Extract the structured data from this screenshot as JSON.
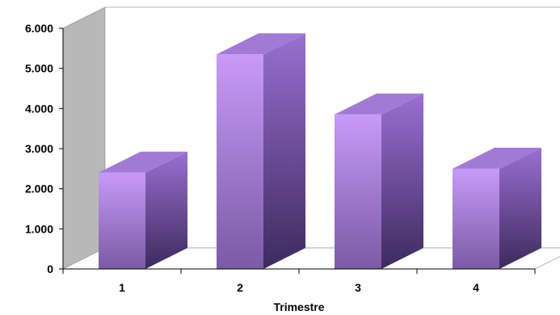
{
  "chart_data": {
    "type": "bar",
    "title": "",
    "xlabel": "Trimestre",
    "ylabel": "",
    "categories": [
      "1",
      "2",
      "3",
      "4"
    ],
    "values": [
      2400,
      5350,
      3850,
      2500
    ],
    "ylim": [
      0,
      6000
    ],
    "yticks": [
      "0",
      "1.000",
      "2.000",
      "3.000",
      "4.000",
      "5.000",
      "6.000"
    ],
    "legend": "none",
    "grid": false,
    "style": "3d-column",
    "colors": {
      "bar_front_top": "#c79af7",
      "bar_front_bottom": "#7b5aa6",
      "bar_side_top": "#9a6fd1",
      "bar_side_bottom": "#3d2a5e",
      "bar_top": "#a27ad6",
      "back_wall": "#ffffff",
      "side_wall": "#b8b8b8"
    }
  }
}
